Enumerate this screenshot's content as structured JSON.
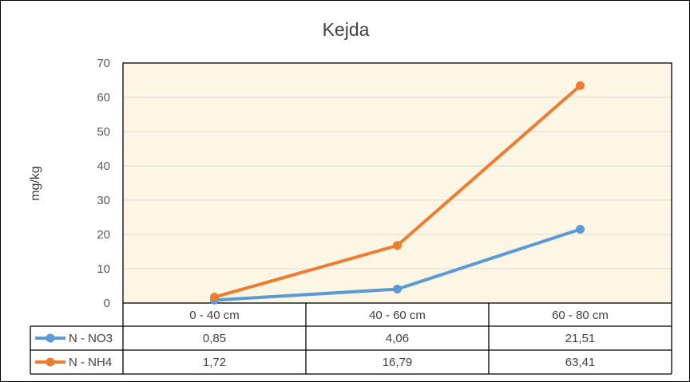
{
  "chart_data": {
    "type": "line",
    "title": "Kejda",
    "xlabel": "",
    "ylabel": "mg/kg",
    "categories": [
      "0 - 40 cm",
      "40 - 60 cm",
      "60 - 80 cm"
    ],
    "ylim": [
      0,
      70
    ],
    "yticks": [
      0,
      10,
      20,
      30,
      40,
      50,
      60,
      70
    ],
    "grid": true,
    "legend": "data-table-left",
    "plot_background": "#FDF6E4",
    "series": [
      {
        "name": "N - NO3",
        "color": "#5B9BD5",
        "values": [
          0.85,
          4.06,
          21.51
        ],
        "labels": [
          "0,85",
          "4,06",
          "21,51"
        ]
      },
      {
        "name": "N - NH4",
        "color": "#ED7D31",
        "values": [
          1.72,
          16.79,
          63.41
        ],
        "labels": [
          "1,72",
          "16,79",
          "63,41"
        ]
      }
    ]
  }
}
